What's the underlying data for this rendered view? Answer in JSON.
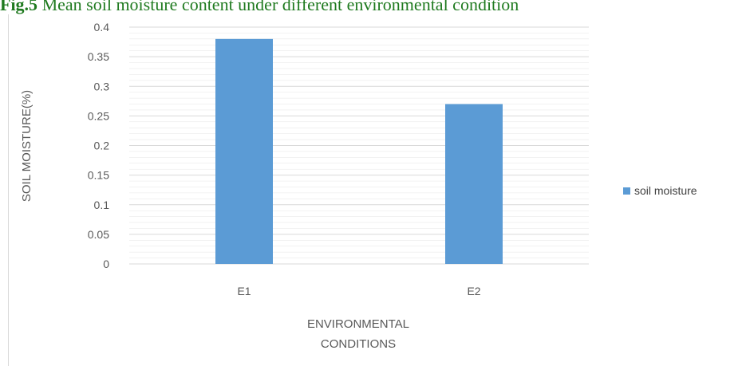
{
  "caption": {
    "label": "Fig.5",
    "text": " Mean soil moisture content under different environmental condition"
  },
  "colors": {
    "bar": "#5b9bd5",
    "grid": "#d9d9d9",
    "axis_text": "#595959",
    "caption": "#1f7a1f"
  },
  "chart_data": {
    "type": "bar",
    "title": "",
    "categories": [
      "E1",
      "E2"
    ],
    "series": [
      {
        "name": "soil moisture",
        "values": [
          0.38,
          0.27
        ]
      }
    ],
    "xlabel_lines": [
      "ENVIRONMENTAL",
      "CONDITIONS"
    ],
    "ylabel": "SOIL MOISTURE(%)",
    "ylim": [
      0,
      0.4
    ],
    "yticks": [
      "0",
      "0.05",
      "0.1",
      "0.15",
      "0.2",
      "0.25",
      "0.3",
      "0.35",
      "0.4"
    ],
    "grid": true,
    "legend_position": "right"
  }
}
